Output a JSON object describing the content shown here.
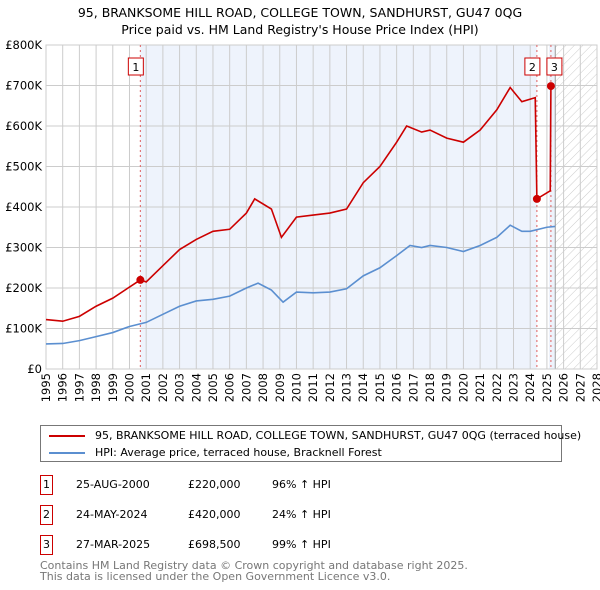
{
  "chart_data": {
    "type": "line",
    "title": "95, BRANKSOME HILL ROAD, COLLEGE TOWN, SANDHURST, GU47 0QG",
    "subtitle": "Price paid vs. HM Land Registry's House Price Index (HPI)",
    "xlim": [
      1995,
      2028
    ],
    "ylim": [
      0,
      800000
    ],
    "x_ticks": [
      "1995",
      "1996",
      "1997",
      "1998",
      "1999",
      "2000",
      "2001",
      "2002",
      "2003",
      "2004",
      "2005",
      "2006",
      "2007",
      "2008",
      "2009",
      "2010",
      "2011",
      "2012",
      "2013",
      "2014",
      "2015",
      "2016",
      "2017",
      "2018",
      "2019",
      "2020",
      "2021",
      "2022",
      "2023",
      "2024",
      "2025",
      "2026",
      "2027",
      "2028"
    ],
    "y_ticks": [
      {
        "v": 0,
        "label": "£0"
      },
      {
        "v": 100000,
        "label": "£100K"
      },
      {
        "v": 200000,
        "label": "£200K"
      },
      {
        "v": 300000,
        "label": "£300K"
      },
      {
        "v": 400000,
        "label": "£400K"
      },
      {
        "v": 500000,
        "label": "£500K"
      },
      {
        "v": 600000,
        "label": "£600K"
      },
      {
        "v": 700000,
        "label": "£700K"
      },
      {
        "v": 800000,
        "label": "£800K"
      }
    ],
    "grid": true,
    "series": [
      {
        "name": "95, BRANKSOME HILL ROAD, COLLEGE TOWN, SANDHURST, GU47 0QG (terraced house)",
        "color": "#cc0000",
        "x": [
          1995,
          1996,
          1997,
          1998,
          1999,
          2000.65,
          2001,
          2002,
          2003,
          2004,
          2005,
          2006,
          2007,
          2007.5,
          2008.5,
          2009.1,
          2010,
          2011,
          2012,
          2013,
          2014,
          2015,
          2016,
          2016.6,
          2017.5,
          2018,
          2019,
          2020,
          2021,
          2022,
          2022.8,
          2023.5,
          2024.3,
          2024.4,
          2025.2,
          2025.24
        ],
        "y": [
          122000,
          118000,
          130000,
          155000,
          175000,
          220000,
          215000,
          255000,
          295000,
          320000,
          340000,
          345000,
          385000,
          420000,
          395000,
          325000,
          375000,
          380000,
          385000,
          395000,
          460000,
          500000,
          560000,
          600000,
          585000,
          590000,
          570000,
          560000,
          590000,
          640000,
          695000,
          660000,
          670000,
          420000,
          440000,
          698500
        ]
      },
      {
        "name": "HPI: Average price, terraced house, Bracknell Forest",
        "color": "#5b8fd0",
        "x": [
          1995,
          1996,
          1997,
          1998,
          1999,
          2000,
          2001,
          2002,
          2003,
          2004,
          2005,
          2006,
          2007,
          2007.7,
          2008.5,
          2009.2,
          2010,
          2011,
          2012,
          2013,
          2014,
          2015,
          2016,
          2016.8,
          2017.5,
          2018,
          2019,
          2020,
          2021,
          2022,
          2022.8,
          2023.5,
          2024,
          2025,
          2025.5
        ],
        "y": [
          62000,
          63000,
          70000,
          80000,
          90000,
          105000,
          115000,
          135000,
          155000,
          168000,
          172000,
          180000,
          200000,
          212000,
          195000,
          165000,
          190000,
          188000,
          190000,
          198000,
          230000,
          250000,
          280000,
          305000,
          300000,
          305000,
          300000,
          290000,
          305000,
          325000,
          355000,
          340000,
          340000,
          350000,
          352000
        ]
      }
    ],
    "sales": [
      {
        "n": "1",
        "x": 2000.65,
        "y": 220000
      },
      {
        "n": "2",
        "x": 2024.4,
        "y": 420000
      },
      {
        "n": "3",
        "x": 2025.24,
        "y": 698500
      }
    ],
    "forecast_from": 2025.5
  },
  "table": [
    {
      "n": "1",
      "date": "25-AUG-2000",
      "price": "£220,000",
      "hpi": "96% ↑ HPI"
    },
    {
      "n": "2",
      "date": "24-MAY-2024",
      "price": "£420,000",
      "hpi": "24% ↑ HPI"
    },
    {
      "n": "3",
      "date": "27-MAR-2025",
      "price": "£698,500",
      "hpi": "99% ↑ HPI"
    }
  ],
  "footer": [
    "Contains HM Land Registry data © Crown copyright and database right 2025.",
    "This data is licensed under the Open Government Licence v3.0."
  ]
}
